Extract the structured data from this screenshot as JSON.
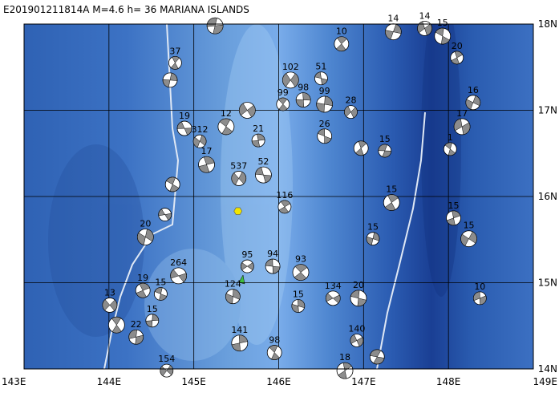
{
  "map": {
    "title": "E201901211814A M=4.6 h= 36 MARIANA ISLANDS",
    "lonlim": [
      143,
      149
    ],
    "latlim": [
      14,
      18
    ],
    "lon_ticks": [
      {
        "value": 143,
        "label": "143E"
      },
      {
        "value": 144,
        "label": "144E"
      },
      {
        "value": 145,
        "label": "145E"
      },
      {
        "value": 146,
        "label": "146E"
      },
      {
        "value": 147,
        "label": "147E"
      },
      {
        "value": 148,
        "label": "148E"
      },
      {
        "value": 149,
        "label": "149E"
      }
    ],
    "lat_ticks": [
      {
        "value": 14,
        "label": "14N"
      },
      {
        "value": 15,
        "label": "15N"
      },
      {
        "value": 16,
        "label": "16N"
      },
      {
        "value": 17,
        "label": "17N"
      },
      {
        "value": 18,
        "label": "18N"
      }
    ],
    "epicenter": {
      "lon": 145.52,
      "lat": 15.83,
      "color": "#f2e600"
    },
    "events": [
      {
        "lon": 145.63,
        "lat": 15.19,
        "depth": 95
      },
      {
        "lon": 145.93,
        "lat": 15.19,
        "depth": 94
      },
      {
        "lon": 146.26,
        "lat": 15.12,
        "depth": 93
      },
      {
        "lon": 146.23,
        "lat": 14.73,
        "depth": 15
      },
      {
        "lon": 146.64,
        "lat": 14.82,
        "depth": 134
      },
      {
        "lon": 146.94,
        "lat": 14.82,
        "depth": 20
      },
      {
        "lon": 146.07,
        "lat": 15.88,
        "depth": 116
      },
      {
        "lon": 145.46,
        "lat": 14.84,
        "depth": 124
      },
      {
        "lon": 144.82,
        "lat": 15.08,
        "depth": 264
      },
      {
        "lon": 144.61,
        "lat": 14.87,
        "depth": 15
      },
      {
        "lon": 144.4,
        "lat": 14.91,
        "depth": 19
      },
      {
        "lon": 144.43,
        "lat": 15.53,
        "depth": 20
      },
      {
        "lon": 144.66,
        "lat": 15.79
      },
      {
        "lon": 144.75,
        "lat": 16.14
      },
      {
        "lon": 145.15,
        "lat": 16.37,
        "depth": 17
      },
      {
        "lon": 145.07,
        "lat": 16.64,
        "depth": 312
      },
      {
        "lon": 144.89,
        "lat": 16.79,
        "depth": 19
      },
      {
        "lon": 145.38,
        "lat": 16.81,
        "depth": 12
      },
      {
        "lon": 145.76,
        "lat": 16.65,
        "depth": 21
      },
      {
        "lon": 145.53,
        "lat": 16.21,
        "depth": 537
      },
      {
        "lon": 145.82,
        "lat": 16.25,
        "depth": 52
      },
      {
        "lon": 146.05,
        "lat": 17.07,
        "depth": 99
      },
      {
        "lon": 146.29,
        "lat": 17.12,
        "depth": 98
      },
      {
        "lon": 146.14,
        "lat": 17.35,
        "depth": 102
      },
      {
        "lon": 146.5,
        "lat": 17.37,
        "depth": 51
      },
      {
        "lon": 146.74,
        "lat": 17.77,
        "depth": 10
      },
      {
        "lon": 146.54,
        "lat": 17.07,
        "depth": 99
      },
      {
        "lon": 146.85,
        "lat": 16.98,
        "depth": 28
      },
      {
        "lon": 146.54,
        "lat": 16.7,
        "depth": 26
      },
      {
        "lon": 147.33,
        "lat": 15.93,
        "depth": 15
      },
      {
        "lon": 147.11,
        "lat": 15.51,
        "depth": 15
      },
      {
        "lon": 147.72,
        "lat": 17.95,
        "depth": 14
      },
      {
        "lon": 147.93,
        "lat": 17.86,
        "depth": 15
      },
      {
        "lon": 148.1,
        "lat": 17.61,
        "depth": 20
      },
      {
        "lon": 148.29,
        "lat": 17.09,
        "depth": 16
      },
      {
        "lon": 148.16,
        "lat": 16.81,
        "depth": 17
      },
      {
        "lon": 148.02,
        "lat": 16.55,
        "depth": 1
      },
      {
        "lon": 148.06,
        "lat": 15.75,
        "depth": 15
      },
      {
        "lon": 148.24,
        "lat": 15.51,
        "depth": 15
      },
      {
        "lon": 148.37,
        "lat": 14.82,
        "depth": 10
      },
      {
        "lon": 145.95,
        "lat": 14.19,
        "depth": 98
      },
      {
        "lon": 145.54,
        "lat": 14.3,
        "depth": 141
      },
      {
        "lon": 144.68,
        "lat": 13.98,
        "depth": 154
      },
      {
        "lon": 144.32,
        "lat": 14.37,
        "depth": 22
      },
      {
        "lon": 144.09,
        "lat": 14.51
      },
      {
        "lon": 144.51,
        "lat": 14.56,
        "depth": 15
      },
      {
        "lon": 144.01,
        "lat": 14.74,
        "depth": 13
      },
      {
        "lon": 145.25,
        "lat": 17.98
      },
      {
        "lon": 144.78,
        "lat": 17.55,
        "depth": 37
      },
      {
        "lon": 144.72,
        "lat": 17.35
      },
      {
        "lon": 145.63,
        "lat": 17.0
      },
      {
        "lon": 147.25,
        "lat": 16.53,
        "depth": 15
      },
      {
        "lon": 146.97,
        "lat": 16.56
      },
      {
        "lon": 147.35,
        "lat": 17.91,
        "depth": 14
      },
      {
        "lon": 146.92,
        "lat": 14.33,
        "depth": 140
      },
      {
        "lon": 147.16,
        "lat": 14.14
      },
      {
        "lon": 146.78,
        "lat": 13.98,
        "depth": 18
      }
    ]
  }
}
